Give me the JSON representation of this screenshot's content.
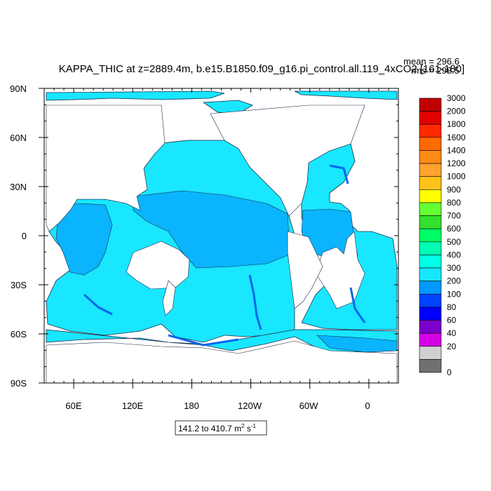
{
  "title": "KAPPA_THIC at z=2889.4m, b.e15.B1850.f09_g16.pi_control.all.119_4xCO2 [161-180]",
  "stats": {
    "mean": "mean = 296.6",
    "rms": "rms = 298.5"
  },
  "range_label": {
    "text": "141.2 to 410.7 m",
    "sup1": "2",
    "mid": " s",
    "sup2": "-1"
  },
  "lat_ticks": [
    "90N",
    "60N",
    "30N",
    "0",
    "30S",
    "60S",
    "90S"
  ],
  "lon_ticks": [
    "60E",
    "120E",
    "180",
    "120W",
    "60W",
    "0"
  ],
  "colorbar": {
    "labels": [
      "3000",
      "2000",
      "1800",
      "1600",
      "1400",
      "1200",
      "1000",
      "900",
      "800",
      "700",
      "600",
      "500",
      "400",
      "300",
      "200",
      "100",
      "80",
      "60",
      "40",
      "20",
      "0"
    ],
    "colors": [
      "#c00000",
      "#e00000",
      "#ff2a00",
      "#ff6a00",
      "#ff8a14",
      "#ffa32e",
      "#ffc21a",
      "#ffff00",
      "#66ff33",
      "#33e02e",
      "#00ff66",
      "#00ffb3",
      "#00ffe6",
      "#19e6ff",
      "#0099ff",
      "#0044ff",
      "#0000ff",
      "#7a00cc",
      "#d400e6",
      "#d0d0d0",
      "#707070"
    ]
  },
  "map": {
    "land_color": "#ffffff",
    "ocean_main": "#19e6ff",
    "ocean_mid": "#0ab4ff",
    "ocean_deep": "#0066ee",
    "outline": "#1a2a4a"
  }
}
